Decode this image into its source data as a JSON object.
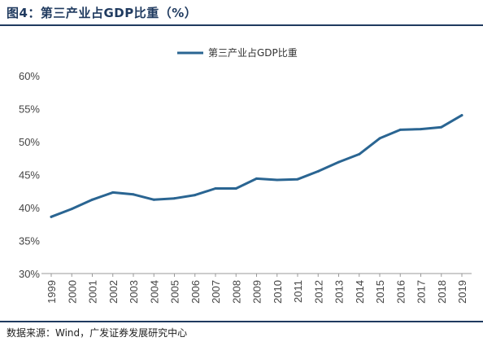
{
  "figure_title": "图4：第三产业占GDP比重（%）",
  "source": "数据来源：Wind，广发证券发展研究中心",
  "colors": {
    "series": "#2a6592",
    "axis": "#999999",
    "rule": "#1f3a5f"
  },
  "chart_data": {
    "type": "line",
    "title": "",
    "xlabel": "",
    "ylabel": "",
    "legend_position": "top-center",
    "grid": false,
    "ylim": [
      30,
      60
    ],
    "yticks": [
      "30%",
      "35%",
      "40%",
      "45%",
      "50%",
      "55%",
      "60%"
    ],
    "categories": [
      "1999",
      "2000",
      "2001",
      "2002",
      "2003",
      "2004",
      "2005",
      "2006",
      "2007",
      "2008",
      "2009",
      "2010",
      "2011",
      "2012",
      "2013",
      "2014",
      "2015",
      "2016",
      "2017",
      "2018",
      "2019"
    ],
    "series": [
      {
        "name": "第三产业占GDP比重",
        "values": [
          38.6,
          39.8,
          41.2,
          42.3,
          42.0,
          41.2,
          41.4,
          41.9,
          42.9,
          42.9,
          44.4,
          44.2,
          44.3,
          45.5,
          46.9,
          48.1,
          50.5,
          51.8,
          51.9,
          52.2,
          54.0
        ]
      }
    ]
  }
}
